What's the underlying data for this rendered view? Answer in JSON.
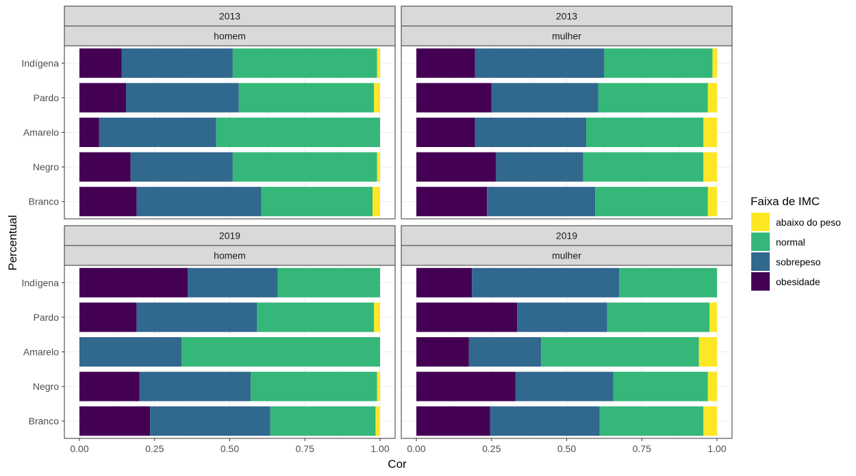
{
  "chart_data": {
    "type": "bar",
    "orientation": "horizontal",
    "stacked": true,
    "xlabel": "Cor",
    "ylabel": "Percentual",
    "xlim": [
      0,
      1
    ],
    "x_ticks": [
      "0.00",
      "0.25",
      "0.50",
      "0.75",
      "1.00"
    ],
    "categories": [
      "Indígena",
      "Pardo",
      "Amarelo",
      "Negro",
      "Branco"
    ],
    "legend": {
      "title": "Faixa de IMC",
      "position": "right",
      "entries": [
        {
          "name": "abaixo do peso",
          "color": "#FDE725"
        },
        {
          "name": "normal",
          "color": "#35B779"
        },
        {
          "name": "sobrepeso",
          "color": "#31688E"
        },
        {
          "name": "obesidade",
          "color": "#440154"
        }
      ]
    },
    "series_order": [
      "obesidade",
      "sobrepeso",
      "normal",
      "abaixo do peso"
    ],
    "grid": true,
    "panels": [
      {
        "year": "2013",
        "sex": "homem",
        "series": [
          {
            "name": "obesidade",
            "values": [
              0.14,
              0.155,
              0.065,
              0.17,
              0.19
            ]
          },
          {
            "name": "sobrepeso",
            "values": [
              0.37,
              0.375,
              0.39,
              0.34,
              0.415
            ]
          },
          {
            "name": "normal",
            "values": [
              0.48,
              0.45,
              0.545,
              0.48,
              0.37
            ]
          },
          {
            "name": "abaixo do peso",
            "values": [
              0.01,
              0.02,
              0.0,
              0.01,
              0.025
            ]
          }
        ]
      },
      {
        "year": "2013",
        "sex": "mulher",
        "series": [
          {
            "name": "obesidade",
            "values": [
              0.195,
              0.25,
              0.195,
              0.265,
              0.235
            ]
          },
          {
            "name": "sobrepeso",
            "values": [
              0.43,
              0.355,
              0.37,
              0.29,
              0.36
            ]
          },
          {
            "name": "normal",
            "values": [
              0.36,
              0.365,
              0.39,
              0.4,
              0.375
            ]
          },
          {
            "name": "abaixo do peso",
            "values": [
              0.015,
              0.03,
              0.045,
              0.045,
              0.03
            ]
          }
        ]
      },
      {
        "year": "2019",
        "sex": "homem",
        "series": [
          {
            "name": "obesidade",
            "values": [
              0.36,
              0.19,
              0.0,
              0.2,
              0.235
            ]
          },
          {
            "name": "sobrepeso",
            "values": [
              0.3,
              0.4,
              0.34,
              0.37,
              0.4
            ]
          },
          {
            "name": "normal",
            "values": [
              0.34,
              0.39,
              0.66,
              0.42,
              0.35
            ]
          },
          {
            "name": "abaixo do peso",
            "values": [
              0.0,
              0.02,
              0.0,
              0.01,
              0.015
            ]
          }
        ]
      },
      {
        "year": "2019",
        "sex": "mulher",
        "series": [
          {
            "name": "obesidade",
            "values": [
              0.185,
              0.335,
              0.175,
              0.33,
              0.245
            ]
          },
          {
            "name": "sobrepeso",
            "values": [
              0.49,
              0.3,
              0.24,
              0.325,
              0.365
            ]
          },
          {
            "name": "normal",
            "values": [
              0.325,
              0.34,
              0.525,
              0.315,
              0.345
            ]
          },
          {
            "name": "abaixo do peso",
            "values": [
              0.0,
              0.025,
              0.06,
              0.03,
              0.045
            ]
          }
        ]
      }
    ]
  }
}
